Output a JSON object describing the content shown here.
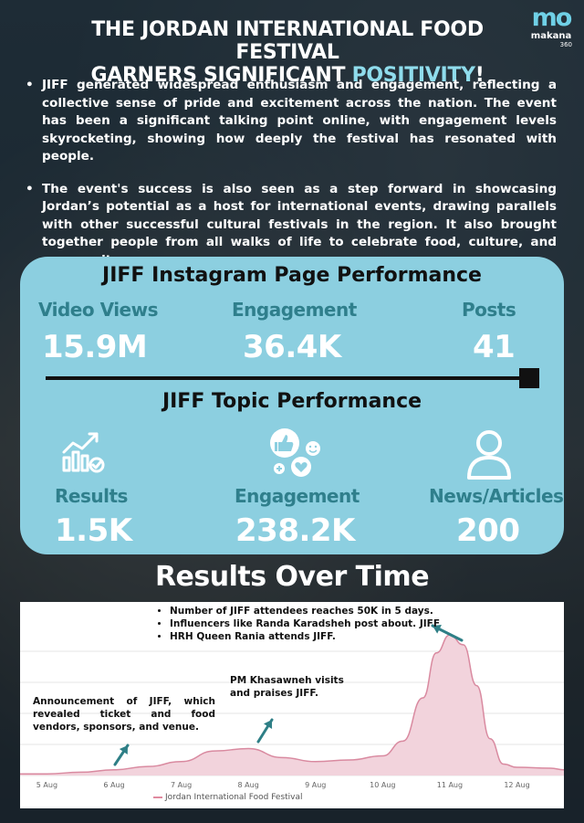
{
  "logo": {
    "mark": "mo",
    "word": "makana",
    "number": "360"
  },
  "title": {
    "line1": "THE JORDAN INTERNATIONAL FOOD FESTIVAL",
    "line2_start": "GARNERS SIGNIFICANT ",
    "line2_accent": "POSITIVITY",
    "line2_end": "!"
  },
  "bullets": [
    "JIFF generated widespread enthusiasm and engagement, reflecting a collective sense of pride and excitement across the nation. The event has been a significant talking point online, with engagement levels skyrocketing, showing how deeply the festival has resonated with people.",
    "The event's success is also seen as a step forward in showcasing Jordan’s potential as a host for international events, drawing parallels with other successful cultural festivals in the region. It also brought together people from all walks of life to celebrate food, culture, and community."
  ],
  "instagram": {
    "title": "JIFF Instagram Page Performance",
    "stats": [
      {
        "label": "Video Views",
        "value": "15.9M"
      },
      {
        "label": "Engagement",
        "value": "36.4K"
      },
      {
        "label": "Posts",
        "value": "41"
      }
    ]
  },
  "topic": {
    "title": "JIFF Topic Performance",
    "stats": [
      {
        "label": "Results",
        "value": "1.5K",
        "icon": "growth-chart-icon"
      },
      {
        "label": "Engagement",
        "value": "238.2K",
        "icon": "reactions-icon"
      },
      {
        "label": "News/Articles",
        "value": "200",
        "icon": "person-icon"
      }
    ]
  },
  "results_title": "Results Over Time",
  "annotations": {
    "announcement": "Announcement of JIFF, which revealed ticket and food vendors, sponsors, and venue.",
    "pm": "PM Khasawneh visits and praises JIFF.",
    "peak": [
      "Number of JIFF attendees reaches 50K in 5 days.",
      "Influencers like Randa Karadsheh post about. JIFF",
      "HRH Queen Rania attends JIFF."
    ]
  },
  "colors": {
    "accent": "#8fdcec",
    "panel": "#8ccfe0",
    "label": "#2f7f8c",
    "series_line": "#d98aa0",
    "series_fill": "#f2d3dc",
    "arrow": "#2e7f86"
  },
  "chart_data": {
    "type": "area",
    "x_ticks": [
      "5 Aug",
      "6 Aug",
      "7 Aug",
      "8 Aug",
      "9 Aug",
      "10 Aug",
      "11 Aug",
      "12 Aug"
    ],
    "series": [
      {
        "name": "Jordan International Food Festival",
        "x": [
          4.6,
          5.0,
          5.5,
          6.0,
          6.5,
          7.0,
          7.5,
          8.0,
          8.5,
          9.0,
          9.5,
          10.0,
          10.3,
          10.6,
          10.8,
          11.0,
          11.2,
          11.4,
          11.6,
          11.8,
          12.0,
          12.5,
          12.7
        ],
        "values": [
          2,
          2,
          4,
          7,
          11,
          17,
          30,
          33,
          22,
          17,
          19,
          24,
          42,
          95,
          150,
          172,
          160,
          110,
          45,
          14,
          10,
          9,
          7
        ]
      }
    ],
    "ylim": [
      0,
      190
    ],
    "grid": "horizontal",
    "legend": "bottom-left"
  }
}
